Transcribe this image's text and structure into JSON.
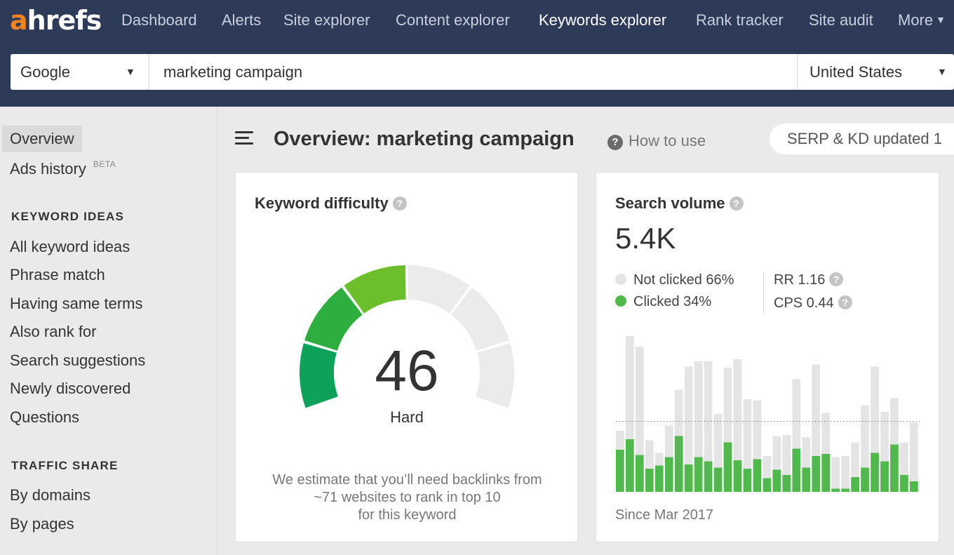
{
  "app": {
    "logo_letter": "a",
    "logo_rest": "hrefs"
  },
  "nav": {
    "items": [
      {
        "label": "Dashboard",
        "active": false
      },
      {
        "label": "Alerts",
        "active": false
      },
      {
        "label": "Site explorer",
        "active": false
      },
      {
        "label": "Content explorer",
        "active": false
      },
      {
        "label": "Keywords explorer",
        "active": true
      },
      {
        "label": "Rank tracker",
        "active": false
      },
      {
        "label": "Site audit",
        "active": false
      },
      {
        "label": "More",
        "active": false
      }
    ]
  },
  "search": {
    "engine": "Google",
    "query": "marketing campaign",
    "country": "United States"
  },
  "sidebar": {
    "items": [
      {
        "label": "Overview"
      },
      {
        "label": "Ads history",
        "badge": "BETA"
      }
    ],
    "sections": [
      {
        "heading": "KEYWORD IDEAS",
        "items": [
          "All keyword ideas",
          "Phrase match",
          "Having same terms",
          "Also rank for",
          "Search suggestions",
          "Newly discovered",
          "Questions"
        ]
      },
      {
        "heading": "TRAFFIC SHARE",
        "items": [
          "By domains",
          "By pages"
        ]
      }
    ]
  },
  "header": {
    "title": "Overview: marketing campaign",
    "how_to_use": "How to use",
    "help_icon_glyph": "?",
    "updated_pill": "SERP & KD updated 1"
  },
  "kd_card": {
    "title": "Keyword difficulty",
    "hint_glyph": "?",
    "value": "46",
    "score": 46,
    "rating": "Hard",
    "note": [
      "We estimate that you’ll need backlinks from",
      "~71 websites to rank in top 10",
      "for this keyword"
    ],
    "segment_colors": [
      "#0ea15a",
      "#2eae3f",
      "#6cbf2b",
      "#c6cf0b"
    ],
    "track_color": "#ebebeb"
  },
  "sv_card": {
    "title": "Search volume",
    "hint_glyph": "?",
    "value": "5.4K",
    "not_clicked": "Not clicked 66%",
    "clicked": "Clicked 34%",
    "rr": "RR 1.16",
    "cps": "CPS 0.44",
    "since": "Since Mar 2017",
    "colors": {
      "not_clicked": "#e4e4e4",
      "clicked": "#51b84e"
    }
  },
  "chart_data": {
    "type": "bar",
    "stacked": true,
    "categories": [
      "",
      "",
      "",
      "",
      "",
      "",
      "",
      "",
      "",
      "",
      "",
      "",
      "",
      "",
      "",
      "",
      "",
      "",
      "",
      "",
      "",
      "",
      "",
      "",
      "",
      "",
      "",
      "",
      "",
      "",
      ""
    ],
    "series": [
      {
        "name": "Clicked",
        "values": [
          0.4,
          0.5,
          0.35,
          0.22,
          0.25,
          0.33,
          0.53,
          0.26,
          0.33,
          0.29,
          0.23,
          0.47,
          0.3,
          0.22,
          0.31,
          0.13,
          0.21,
          0.16,
          0.41,
          0.23,
          0.34,
          0.36,
          0.03,
          0.03,
          0.14,
          0.23,
          0.37,
          0.29,
          0.45,
          0.16,
          0.1
        ]
      },
      {
        "name": "Not clicked",
        "values": [
          0.18,
          0.98,
          1.03,
          0.27,
          0.12,
          0.3,
          0.44,
          0.93,
          0.91,
          0.95,
          0.51,
          0.71,
          0.96,
          0.66,
          0.56,
          0.21,
          0.32,
          0.38,
          0.66,
          0.29,
          0.87,
          0.39,
          0.3,
          0.31,
          0.33,
          0.59,
          0.82,
          0.47,
          0.44,
          0.31,
          0.56
        ]
      }
    ],
    "reference_line": 0.67,
    "grid": false
  }
}
